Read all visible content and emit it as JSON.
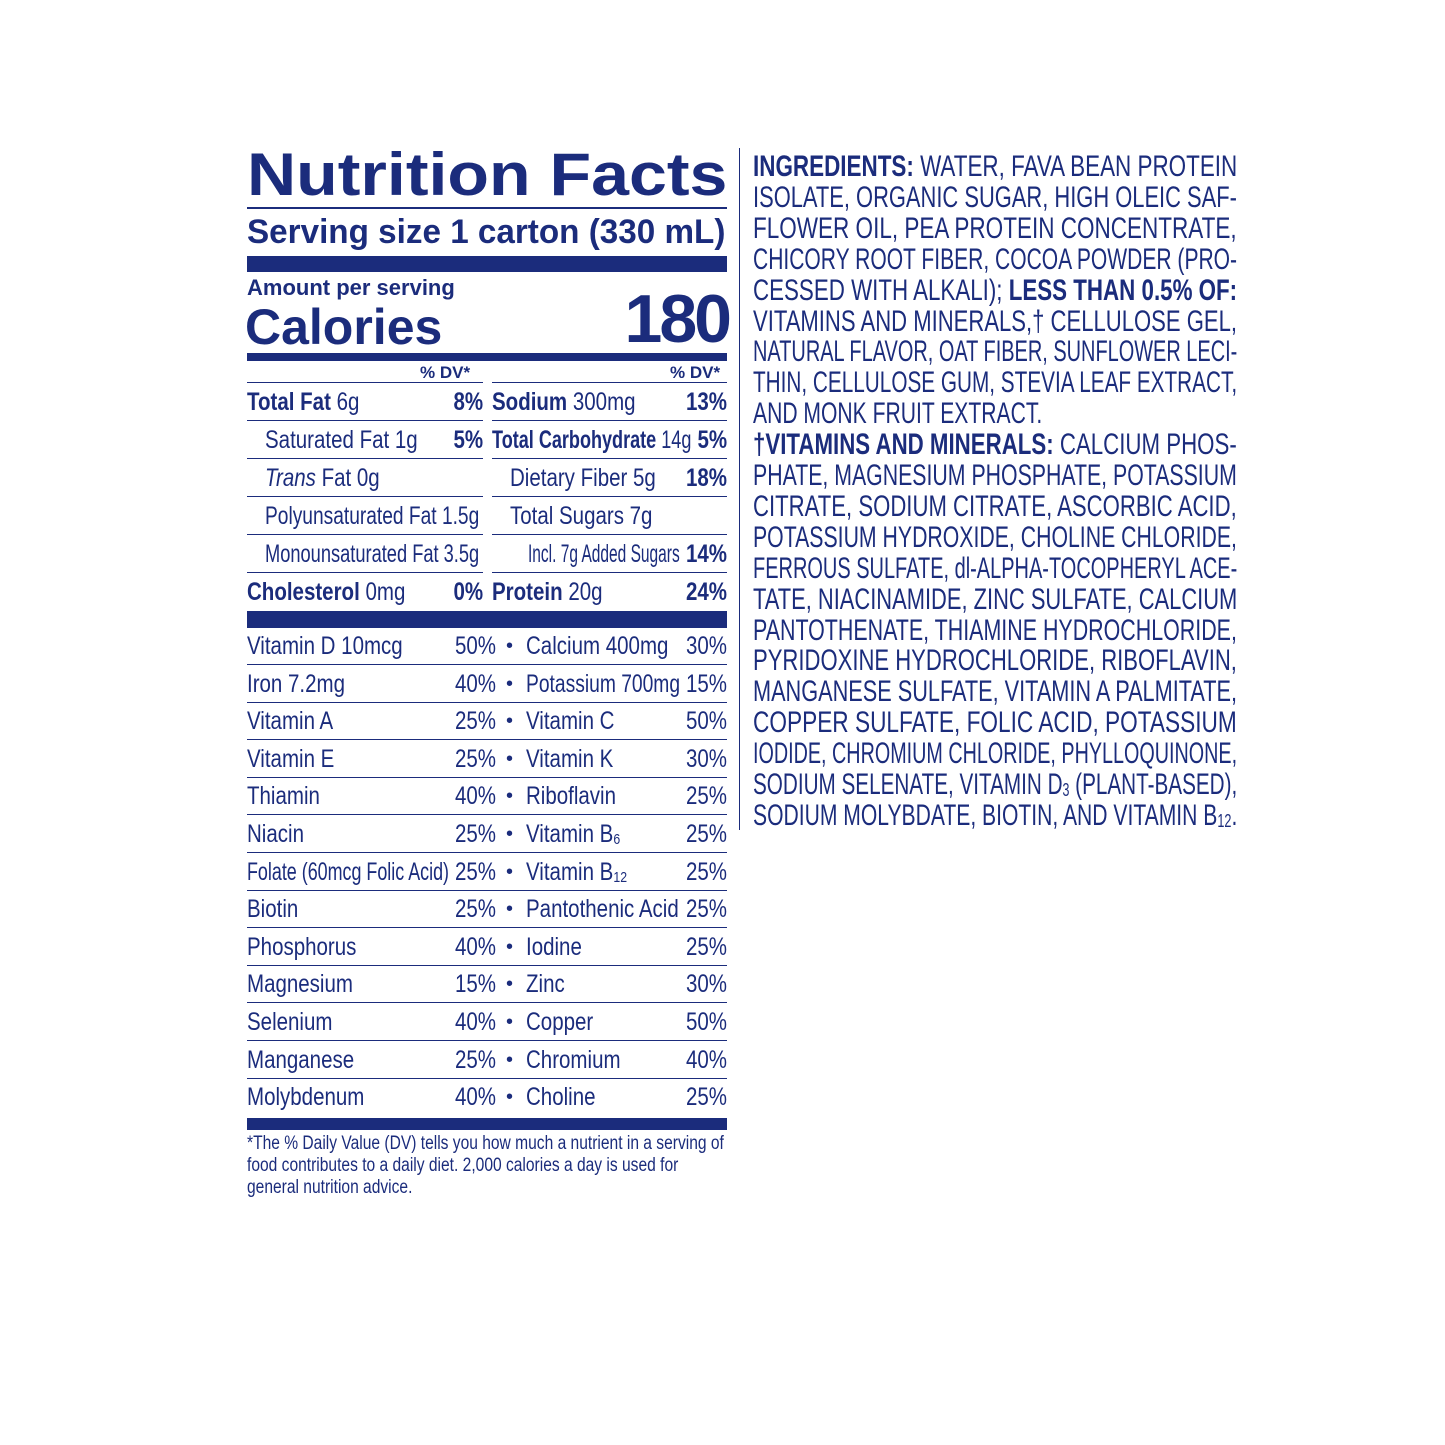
{
  "colors": {
    "ink": "#1b2c7c",
    "background": "#ffffff"
  },
  "nutrition": {
    "title": "Nutrition Facts",
    "serving_size": "Serving size  1 carton (330 mL)",
    "amount_per_serving": "Amount per serving",
    "calories_label": "Calories",
    "calories_value": "180",
    "dv_header": "% DV*",
    "left_rows": [
      {
        "name": "Total Fat",
        "amount": " 6g",
        "dv": "8%",
        "bold": true,
        "indent": 0
      },
      {
        "name": "Saturated Fat 1g",
        "amount": "",
        "dv": "5%",
        "bold": false,
        "indent": 1
      },
      {
        "name": "Trans",
        "amount": " Fat 0g",
        "dv": "",
        "bold": false,
        "indent": 1,
        "italic": true
      },
      {
        "name": "Polyunsaturated Fat 1.5g",
        "amount": "",
        "dv": "",
        "bold": false,
        "indent": 1
      },
      {
        "name": "Monounsaturated Fat 3.5g",
        "amount": "",
        "dv": "",
        "bold": false,
        "indent": 1
      },
      {
        "name": "Cholesterol",
        "amount": " 0mg",
        "dv": "0%",
        "bold": true,
        "indent": 0
      }
    ],
    "right_rows": [
      {
        "name": "Sodium",
        "amount": " 300mg",
        "dv": "13%",
        "bold": true,
        "indent": 0
      },
      {
        "name": "Total Carbohydrate",
        "amount": " 14g",
        "dv": "5%",
        "bold": true,
        "indent": 0
      },
      {
        "name": "Dietary Fiber 5g",
        "amount": "",
        "dv": "18%",
        "bold": false,
        "indent": 1
      },
      {
        "name": "Total Sugars 7g",
        "amount": "",
        "dv": "",
        "bold": false,
        "indent": 1
      },
      {
        "name": "Incl. 7g Added Sugars",
        "amount": "",
        "dv": "14%",
        "bold": false,
        "indent": 2
      },
      {
        "name": "Protein",
        "amount": " 20g",
        "dv": "24%",
        "bold": true,
        "indent": 0
      }
    ],
    "vitamins": [
      {
        "left": "Vitamin D 10mcg",
        "left_dv": "50%",
        "right": "Calcium 400mg",
        "right_dv": "30%"
      },
      {
        "left": "Iron 7.2mg",
        "left_dv": "40%",
        "right": "Potassium 700mg",
        "right_dv": "15%"
      },
      {
        "left": "Vitamin A",
        "left_dv": "25%",
        "right": "Vitamin C",
        "right_dv": "50%"
      },
      {
        "left": "Vitamin E",
        "left_dv": "25%",
        "right": "Vitamin K",
        "right_dv": "30%"
      },
      {
        "left": "Thiamin",
        "left_dv": "40%",
        "right": "Riboflavin",
        "right_dv": "25%"
      },
      {
        "left": "Niacin",
        "left_dv": "25%",
        "right": "Vitamin B",
        "right_sub": "6",
        "right_dv": "25%"
      },
      {
        "left": "Folate (60mcg Folic Acid)",
        "left_dv": "25%",
        "right": "Vitamin B",
        "right_sub": "12",
        "right_dv": "25%"
      },
      {
        "left": "Biotin",
        "left_dv": "25%",
        "right": "Pantothenic Acid",
        "right_dv": "25%"
      },
      {
        "left": "Phosphorus",
        "left_dv": "40%",
        "right": "Iodine",
        "right_dv": "25%"
      },
      {
        "left": "Magnesium",
        "left_dv": "15%",
        "right": "Zinc",
        "right_dv": "30%"
      },
      {
        "left": "Selenium",
        "left_dv": "40%",
        "right": "Copper",
        "right_dv": "50%"
      },
      {
        "left": "Manganese",
        "left_dv": "25%",
        "right": "Chromium",
        "right_dv": "40%"
      },
      {
        "left": "Molybdenum",
        "left_dv": "40%",
        "right": "Choline",
        "right_dv": "25%"
      }
    ],
    "bullet": "•",
    "footnote": [
      "*The % Daily Value (DV) tells you how much a nutrient in a serving of",
      "food contributes to a daily diet. 2,000 calories a day is used for",
      "general nutrition advice."
    ]
  },
  "ingredients": {
    "lines": [
      {
        "bold": "INGREDIENTS:",
        "text": " WATER, FAVA BEAN PROTEIN"
      },
      {
        "text": "ISOLATE, ORGANIC SUGAR, HIGH OLEIC SAF-"
      },
      {
        "text": "FLOWER OIL, PEA PROTEIN CONCENTRATE,"
      },
      {
        "text": "CHICORY ROOT FIBER, COCOA POWDER (PRO-"
      },
      {
        "text": "CESSED WITH ALKALI); ",
        "bold_after": "LESS THAN 0.5% OF:"
      },
      {
        "text": "VITAMINS AND MINERALS,† CELLULOSE GEL,"
      },
      {
        "text": "NATURAL FLAVOR, OAT FIBER, SUNFLOWER LECI-"
      },
      {
        "text": "THIN, CELLULOSE GUM, STEVIA LEAF EXTRACT,"
      },
      {
        "text": "AND MONK FRUIT EXTRACT.",
        "last": true
      },
      {
        "bold": "†VITAMINS AND MINERALS:",
        "text": " CALCIUM PHOS-"
      },
      {
        "text": "PHATE, MAGNESIUM PHOSPHATE, POTASSIUM"
      },
      {
        "text": "CITRATE, SODIUM CITRATE, ASCORBIC ACID,"
      },
      {
        "text": "POTASSIUM HYDROXIDE, CHOLINE CHLORIDE,"
      },
      {
        "text": "FERROUS SULFATE, dl-ALPHA-TOCOPHERYL ACE-"
      },
      {
        "text": "TATE, NIACINAMIDE, ZINC SULFATE, CALCIUM"
      },
      {
        "text": "PANTOTHENATE, THIAMINE HYDROCHLORIDE,"
      },
      {
        "text": "PYRIDOXINE HYDROCHLORIDE, RIBOFLAVIN,"
      },
      {
        "text": "MANGANESE SULFATE, VITAMIN A PALMITATE,"
      },
      {
        "text": "COPPER SULFATE, FOLIC ACID, POTASSIUM"
      },
      {
        "text": "IODIDE, CHROMIUM CHLORIDE, PHYLLOQUINONE,"
      },
      {
        "text": "SODIUM SELENATE, VITAMIN D",
        "sub": "3",
        "text_after": " (PLANT-BASED),"
      },
      {
        "text": "SODIUM MOLYBDATE, BIOTIN, AND VITAMIN B",
        "sub": "12",
        "text_after": "."
      }
    ]
  }
}
